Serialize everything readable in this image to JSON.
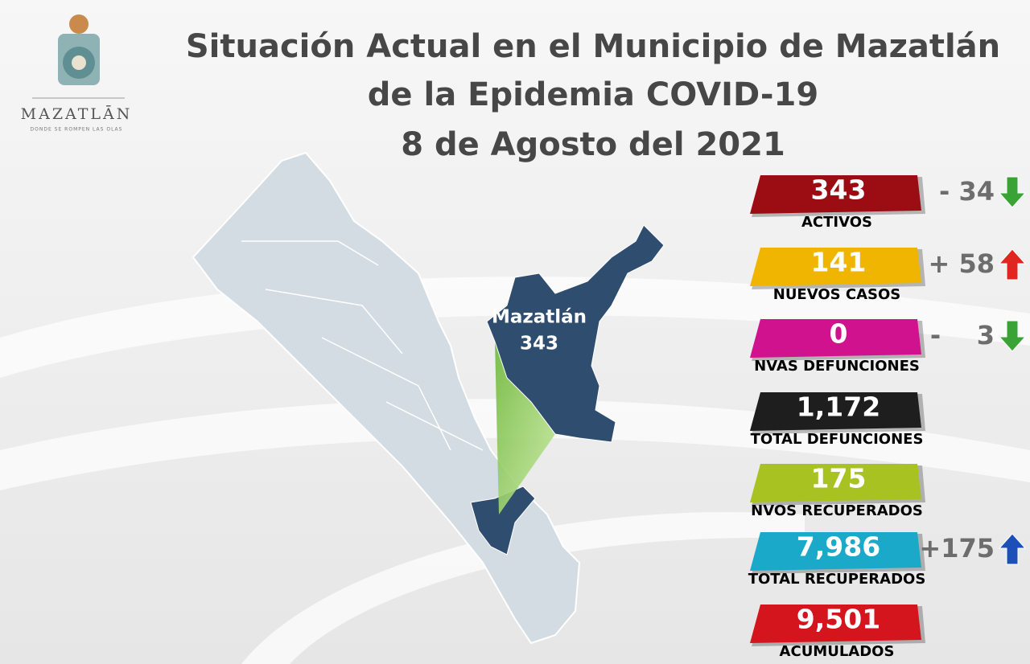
{
  "header": {
    "title_lines": [
      "Situación Actual en el Municipio de Mazatlán",
      "de la Epidemia COVID-19",
      "8 de Agosto del 2021"
    ]
  },
  "logo": {
    "name": "MAZATLĀN",
    "tagline": "DONDE SE ROMPEN LAS OLAS"
  },
  "map": {
    "label": "Mazatlán",
    "value": "343"
  },
  "stats": [
    {
      "value": "343",
      "label": "ACTIVOS",
      "change": "- 34"
    },
    {
      "value": "141",
      "label": "NUEVOS CASOS",
      "change": "+ 58"
    },
    {
      "value": "0",
      "label": "NVAS DEFUNCIONES",
      "change": "-    3"
    },
    {
      "value": "1,172",
      "label": "TOTAL DEFUNCIONES"
    },
    {
      "value": "175",
      "label": "NVOS RECUPERADOS"
    },
    {
      "value": "7,986",
      "label": "TOTAL RECUPERADOS",
      "change": "+175"
    },
    {
      "value": "9,501",
      "label": "ACUMULADOS"
    }
  ]
}
